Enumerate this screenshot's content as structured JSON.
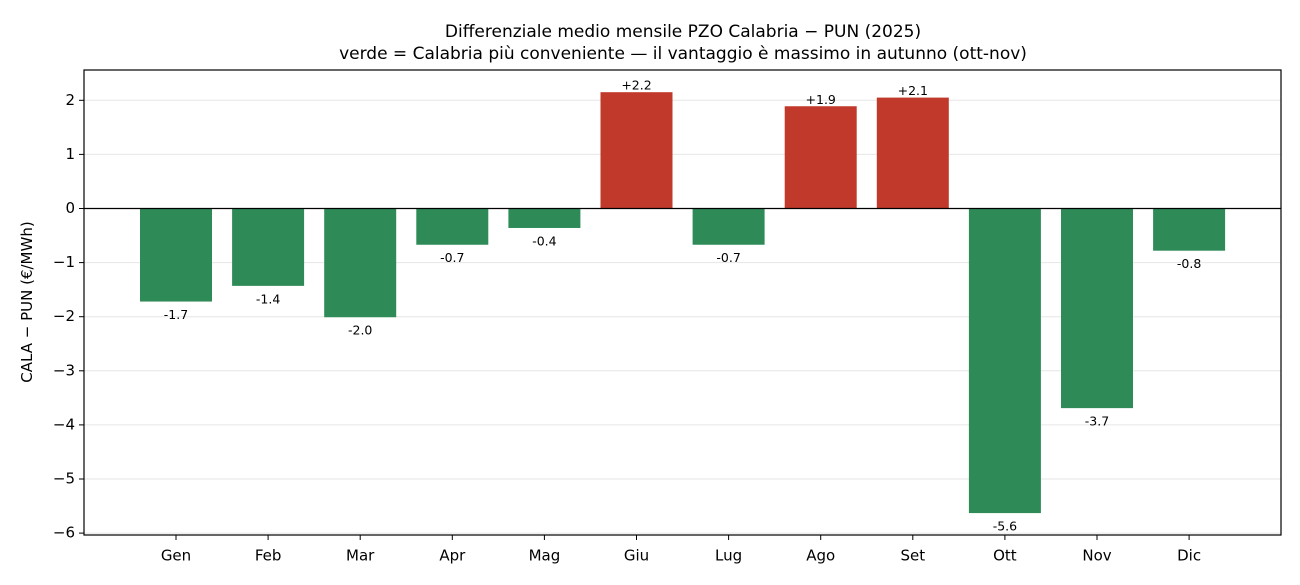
{
  "chart_data": {
    "type": "bar",
    "title": "Differenziale medio mensile PZO Calabria − PUN (2025)",
    "subtitle": "verde = Calabria più conveniente — il vantaggio è massimo in autunno (ott-nov)",
    "xlabel": "",
    "ylabel": "CALA − PUN (€/MWh)",
    "categories": [
      "Gen",
      "Feb",
      "Mar",
      "Apr",
      "Mag",
      "Giu",
      "Lug",
      "Ago",
      "Set",
      "Ott",
      "Nov",
      "Dic"
    ],
    "values": [
      -1.72,
      -1.43,
      -2.01,
      -0.67,
      -0.36,
      2.15,
      -0.67,
      1.89,
      2.05,
      -5.63,
      -3.69,
      -0.78
    ],
    "data_labels": [
      "-1.7",
      "-1.4",
      "-2.0",
      "-0.7",
      "-0.4",
      "+2.2",
      "-0.7",
      "+1.9",
      "+2.1",
      "-5.6",
      "-3.7",
      "-0.8"
    ],
    "ylim": [
      -6.05,
      2.55
    ],
    "yticks": [
      2,
      1,
      0,
      -1,
      -2,
      -3,
      -4,
      -5,
      -6
    ],
    "ytick_labels": [
      "2",
      "1",
      "0",
      "−1",
      "−2",
      "−3",
      "−4",
      "−5",
      "−6"
    ],
    "grid": "horizontal",
    "colors": {
      "negative": "#2e8b57",
      "positive": "#c0392b"
    }
  }
}
